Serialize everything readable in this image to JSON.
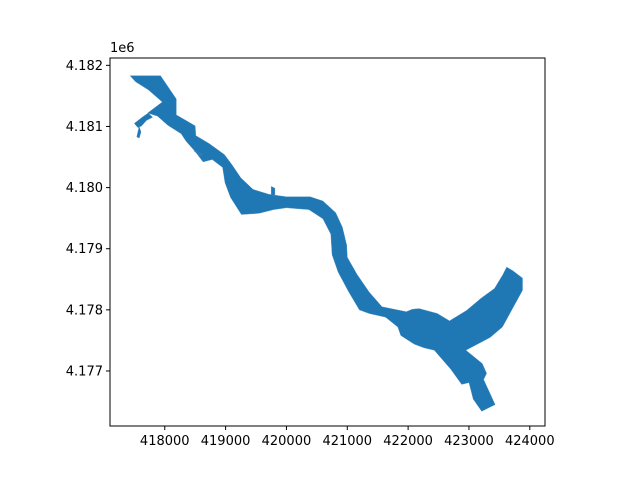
{
  "chart_data": {
    "type": "map",
    "title": "",
    "xlabel": "",
    "ylabel": "",
    "y_offset_label": "1e6",
    "xlim": [
      417100,
      424250
    ],
    "ylim": [
      4176100,
      4182120
    ],
    "x_ticks": [
      418000,
      419000,
      420000,
      421000,
      422000,
      423000,
      424000
    ],
    "x_tick_labels": [
      "418000",
      "419000",
      "420000",
      "421000",
      "422000",
      "423000",
      "424000"
    ],
    "y_ticks": [
      4177000,
      4178000,
      4179000,
      4180000,
      4181000,
      4182000
    ],
    "y_tick_labels": [
      "4.177",
      "4.178",
      "4.179",
      "4.180",
      "4.181",
      "4.182"
    ],
    "grid": false,
    "fill_color": "#1f77b4",
    "edge_color": "#4b8fc4",
    "polygons": [
      {
        "name": "river-main",
        "coords": [
          [
            417430,
            4181830
          ],
          [
            417930,
            4181830
          ],
          [
            418190,
            4181450
          ],
          [
            418190,
            4181190
          ],
          [
            418380,
            4181080
          ],
          [
            418500,
            4181010
          ],
          [
            418510,
            4180850
          ],
          [
            418730,
            4180720
          ],
          [
            418980,
            4180540
          ],
          [
            419100,
            4180380
          ],
          [
            419250,
            4180160
          ],
          [
            419450,
            4179970
          ],
          [
            419710,
            4179890
          ],
          [
            420000,
            4179850
          ],
          [
            420390,
            4179850
          ],
          [
            420600,
            4179780
          ],
          [
            420810,
            4179590
          ],
          [
            420920,
            4179350
          ],
          [
            420990,
            4179060
          ],
          [
            421000,
            4178860
          ],
          [
            421160,
            4178580
          ],
          [
            421360,
            4178290
          ],
          [
            421570,
            4178050
          ],
          [
            421970,
            4177970
          ],
          [
            422070,
            4178010
          ],
          [
            422180,
            4178020
          ],
          [
            422480,
            4177940
          ],
          [
            422680,
            4177820
          ],
          [
            422960,
            4177990
          ],
          [
            423200,
            4178190
          ],
          [
            423420,
            4178350
          ],
          [
            423560,
            4178580
          ],
          [
            423620,
            4178700
          ],
          [
            423720,
            4178640
          ],
          [
            423880,
            4178520
          ],
          [
            423880,
            4178320
          ],
          [
            423550,
            4177720
          ],
          [
            423350,
            4177550
          ],
          [
            422950,
            4177340
          ],
          [
            423220,
            4177120
          ],
          [
            423290,
            4176960
          ],
          [
            423240,
            4176860
          ],
          [
            423430,
            4176450
          ],
          [
            423210,
            4176340
          ],
          [
            423070,
            4176540
          ],
          [
            423000,
            4176810
          ],
          [
            422880,
            4176780
          ],
          [
            422700,
            4177030
          ],
          [
            422430,
            4177340
          ],
          [
            422260,
            4177380
          ],
          [
            422100,
            4177440
          ],
          [
            421880,
            4177580
          ],
          [
            421830,
            4177720
          ],
          [
            421630,
            4177880
          ],
          [
            421360,
            4177940
          ],
          [
            421200,
            4178000
          ],
          [
            421020,
            4178300
          ],
          [
            420850,
            4178620
          ],
          [
            420750,
            4178900
          ],
          [
            420730,
            4179240
          ],
          [
            420600,
            4179490
          ],
          [
            420370,
            4179640
          ],
          [
            420000,
            4179670
          ],
          [
            419790,
            4179640
          ],
          [
            419550,
            4179580
          ],
          [
            419260,
            4179560
          ],
          [
            419080,
            4179840
          ],
          [
            418990,
            4180080
          ],
          [
            418950,
            4180330
          ],
          [
            418780,
            4180460
          ],
          [
            418630,
            4180420
          ],
          [
            418500,
            4180590
          ],
          [
            418350,
            4180760
          ],
          [
            418270,
            4180880
          ],
          [
            418050,
            4181020
          ],
          [
            417880,
            4181170
          ],
          [
            417720,
            4181220
          ],
          [
            417960,
            4181400
          ],
          [
            417730,
            4181600
          ],
          [
            417520,
            4181730
          ]
        ]
      },
      {
        "name": "side-channel-west",
        "coords": [
          [
            417730,
            4181220
          ],
          [
            417640,
            4181160
          ],
          [
            417500,
            4181050
          ],
          [
            417560,
            4180980
          ],
          [
            417620,
            4181010
          ],
          [
            417700,
            4181100
          ],
          [
            417800,
            4181150
          ]
        ]
      },
      {
        "name": "side-channel-west-spur",
        "coords": [
          [
            417580,
            4181000
          ],
          [
            417560,
            4180920
          ],
          [
            417540,
            4180830
          ],
          [
            417580,
            4180810
          ],
          [
            417610,
            4180910
          ]
        ]
      },
      {
        "name": "inlet-mid",
        "coords": [
          [
            418480,
            4180600
          ],
          [
            418550,
            4180580
          ],
          [
            418620,
            4180540
          ],
          [
            418580,
            4180520
          ]
        ]
      },
      {
        "name": "inlet-north-bend",
        "coords": [
          [
            419750,
            4179880
          ],
          [
            419750,
            4180020
          ],
          [
            419810,
            4179990
          ],
          [
            419810,
            4179870
          ]
        ]
      }
    ]
  }
}
